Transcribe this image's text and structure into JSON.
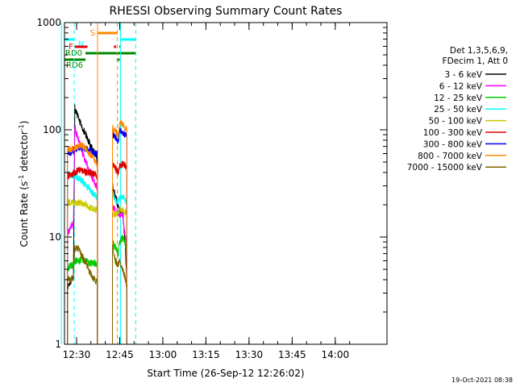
{
  "chart_data": {
    "type": "line",
    "title": "RHESSI Observing Summary Count Rates",
    "xlabel": "Start Time (26-Sep-12 12:26:02)",
    "ylabel_main": "Count Rate (s",
    "ylabel_sup1": "-1",
    "ylabel_mid": " detector",
    "ylabel_sup2": "-1",
    "ylabel_end": ")",
    "yscale": "log",
    "ylim": [
      1,
      1000
    ],
    "xlim_minutes": [
      12.43,
      14.3
    ],
    "x_ticks": [
      {
        "label": "12:30",
        "minutes": 750
      },
      {
        "label": "12:45",
        "minutes": 765
      },
      {
        "label": "13:00",
        "minutes": 780
      },
      {
        "label": "13:15",
        "minutes": 795
      },
      {
        "label": "13:30",
        "minutes": 810
      },
      {
        "label": "13:45",
        "minutes": 825
      },
      {
        "label": "14:00",
        "minutes": 840
      }
    ],
    "y_ticks": [
      {
        "label": "1",
        "value": 1
      },
      {
        "label": "10",
        "value": 10
      },
      {
        "label": "100",
        "value": 100
      },
      {
        "label": "1000",
        "value": 1000
      }
    ],
    "legend_header": [
      "Det 1,3,5,6,9,",
      "FDecim 1, Att 0"
    ],
    "timestamp": "19-Oct-2021 08:38",
    "series": [
      {
        "name": "3 - 6 keV",
        "color": "#000000",
        "segments": [
          [
            [
              746.8,
              3.2
            ],
            [
              747.3,
              3.6
            ],
            [
              747.8,
              3.8
            ],
            [
              748.4,
              4.0
            ],
            [
              748.9,
              4.2
            ],
            [
              749.4,
              160
            ],
            [
              750.0,
              145
            ],
            [
              751.0,
              120
            ],
            [
              752.0,
              105
            ],
            [
              753.0,
              92
            ],
            [
              754.0,
              80
            ],
            [
              755.0,
              70
            ],
            [
              756.0,
              62
            ],
            [
              757.2,
              55
            ]
          ],
          [
            [
              762.5,
              30
            ],
            [
              763.5,
              24
            ],
            [
              764.5,
              19
            ],
            [
              765.0,
              17
            ],
            [
              766.0,
              18
            ],
            [
              767.0,
              8
            ],
            [
              767.5,
              3.5
            ]
          ]
        ]
      },
      {
        "name": "6 - 12 keV",
        "color": "#ff00ff",
        "segments": [
          [
            [
              746.8,
              10.5
            ],
            [
              747.3,
              11.5
            ],
            [
              747.8,
              12
            ],
            [
              748.4,
              13
            ],
            [
              748.9,
              13.5
            ],
            [
              749.4,
              105
            ],
            [
              750.0,
              92
            ],
            [
              751.0,
              75
            ],
            [
              752.0,
              62
            ],
            [
              753.0,
              52
            ],
            [
              754.0,
              44
            ],
            [
              755.0,
              38
            ],
            [
              756.0,
              33
            ],
            [
              757.2,
              29
            ]
          ],
          [
            [
              762.5,
              19
            ],
            [
              763.5,
              18
            ],
            [
              764.5,
              17
            ],
            [
              765.0,
              16
            ],
            [
              766.0,
              16
            ],
            [
              767.0,
              10
            ],
            [
              767.5,
              8
            ]
          ]
        ]
      },
      {
        "name": "12 - 25 keV",
        "color": "#00cc00",
        "segments": [
          [
            [
              746.8,
              5.0
            ],
            [
              747.8,
              5.4
            ],
            [
              748.9,
              5.5
            ],
            [
              749.4,
              6.0
            ],
            [
              750.5,
              6.0
            ],
            [
              751.5,
              6.1
            ],
            [
              752.5,
              6.0
            ],
            [
              753.5,
              5.9
            ],
            [
              754.5,
              5.8
            ],
            [
              755.5,
              5.7
            ],
            [
              756.5,
              5.6
            ],
            [
              757.2,
              5.5
            ]
          ],
          [
            [
              762.5,
              9
            ],
            [
              763.5,
              8
            ],
            [
              764.5,
              7
            ],
            [
              765.0,
              9
            ],
            [
              766.0,
              10
            ],
            [
              767.0,
              9
            ],
            [
              767.5,
              7
            ]
          ]
        ]
      },
      {
        "name": "25 - 50 keV",
        "color": "#00ffff",
        "segments": [
          [
            [
              746.8,
              38
            ],
            [
              748.0,
              38
            ],
            [
              749.4,
              37
            ],
            [
              750.5,
              36
            ],
            [
              751.5,
              34
            ],
            [
              752.5,
              32
            ],
            [
              753.5,
              30
            ],
            [
              754.5,
              28
            ],
            [
              755.5,
              26
            ],
            [
              756.5,
              24
            ],
            [
              757.2,
              24
            ]
          ],
          [
            [
              762.5,
              26
            ],
            [
              763.5,
              22
            ],
            [
              764.5,
              21
            ],
            [
              765.0,
              23
            ],
            [
              766.0,
              24
            ],
            [
              767.0,
              22
            ],
            [
              767.5,
              21
            ]
          ]
        ]
      },
      {
        "name": "50 - 100 keV",
        "color": "#cccc00",
        "segments": [
          [
            [
              746.8,
              21
            ],
            [
              748.0,
              21
            ],
            [
              749.4,
              21
            ],
            [
              750.5,
              21
            ],
            [
              751.5,
              21
            ],
            [
              752.5,
              20.5
            ],
            [
              753.5,
              20
            ],
            [
              754.5,
              19
            ],
            [
              755.5,
              18.5
            ],
            [
              756.5,
              18
            ],
            [
              757.2,
              17.5
            ]
          ],
          [
            [
              762.5,
              17
            ],
            [
              763.5,
              16
            ],
            [
              764.5,
              17
            ],
            [
              765.0,
              18
            ],
            [
              766.0,
              18
            ],
            [
              767.0,
              17
            ],
            [
              767.5,
              17
            ]
          ]
        ]
      },
      {
        "name": "100 - 300 keV",
        "color": "#dd0000",
        "segments": [
          [
            [
              746.8,
              37
            ],
            [
              748.0,
              38
            ],
            [
              749.4,
              40
            ],
            [
              750.5,
              42
            ],
            [
              751.5,
              42
            ],
            [
              752.5,
              41
            ],
            [
              753.5,
              40
            ],
            [
              754.5,
              40
            ],
            [
              755.5,
              39
            ],
            [
              756.5,
              38
            ],
            [
              757.2,
              37
            ]
          ],
          [
            [
              762.5,
              48
            ],
            [
              763.5,
              44
            ],
            [
              764.5,
              40
            ],
            [
              765.0,
              46
            ],
            [
              766.0,
              48
            ],
            [
              767.0,
              46
            ],
            [
              767.5,
              46
            ]
          ]
        ]
      },
      {
        "name": "300 - 800 keV",
        "color": "#0000ff",
        "segments": [
          [
            [
              746.8,
              62
            ],
            [
              748.0,
              62
            ],
            [
              749.4,
              65
            ],
            [
              750.5,
              68
            ],
            [
              751.5,
              70
            ],
            [
              752.5,
              68
            ],
            [
              753.5,
              66
            ],
            [
              754.5,
              64
            ],
            [
              755.5,
              62
            ],
            [
              756.5,
              61
            ],
            [
              757.2,
              60
            ]
          ],
          [
            [
              762.5,
              92
            ],
            [
              763.5,
              86
            ],
            [
              764.5,
              78
            ],
            [
              765.0,
              98
            ],
            [
              766.0,
              95
            ],
            [
              767.0,
              90
            ],
            [
              767.5,
              88
            ]
          ]
        ]
      },
      {
        "name": "800 - 7000 keV",
        "color": "#ff8800",
        "segments": [
          [
            [
              746.8,
              65
            ],
            [
              748.0,
              66
            ],
            [
              749.4,
              68
            ],
            [
              750.5,
              70
            ],
            [
              751.5,
              72
            ],
            [
              752.5,
              70
            ],
            [
              753.5,
              66
            ],
            [
              754.5,
              60
            ],
            [
              755.5,
              55
            ],
            [
              756.5,
              50
            ],
            [
              757.2,
              48
            ]
          ],
          [
            [
              762.5,
              105
            ],
            [
              763.5,
              98
            ],
            [
              764.5,
              88
            ],
            [
              765.0,
              118
            ],
            [
              766.0,
              112
            ],
            [
              767.0,
              105
            ],
            [
              767.5,
              102
            ]
          ]
        ]
      },
      {
        "name": "7000 - 15000 keV",
        "color": "#806600",
        "segments": [
          [
            [
              746.8,
              4.0
            ],
            [
              747.8,
              4.0
            ],
            [
              748.9,
              4.2
            ],
            [
              749.4,
              8.0
            ],
            [
              750.5,
              7.8
            ],
            [
              751.5,
              7.0
            ],
            [
              752.5,
              6.2
            ],
            [
              753.5,
              5.5
            ],
            [
              754.5,
              4.8
            ],
            [
              755.5,
              4.2
            ],
            [
              756.5,
              3.9
            ],
            [
              757.2,
              3.8
            ]
          ],
          [
            [
              762.5,
              8
            ],
            [
              763.5,
              6
            ],
            [
              764.5,
              5.5
            ],
            [
              765.0,
              6
            ],
            [
              766.0,
              5
            ],
            [
              767.0,
              4
            ],
            [
              767.5,
              3.2
            ]
          ]
        ]
      }
    ],
    "flags": [
      {
        "label": "N",
        "color": "#00ffff",
        "tier": 1,
        "segments": [
          [
            744.7,
            749.1
          ],
          [
            765.3,
            770.6
          ]
        ]
      },
      {
        "label": "F",
        "color": "#ee0000",
        "tier": 2,
        "segments": [
          [
            749.4,
            753.8
          ],
          [
            763.0,
            763.8
          ],
          [
            764.9,
            765.4
          ]
        ]
      },
      {
        "label": "S",
        "color": "#ff8800",
        "tier": 0,
        "segments": [
          [
            757.3,
            764.2
          ]
        ]
      },
      {
        "label": "RD0",
        "color": "#008800",
        "tier": 3,
        "segments": [
          [
            744.7,
            745.8
          ],
          [
            753.1,
            764.0
          ],
          [
            764.1,
            770.6
          ]
        ]
      },
      {
        "label": "RD6",
        "color": "#008800",
        "tier": 4,
        "segments": [
          [
            745.8,
            753.1
          ],
          [
            764.0,
            765.0
          ]
        ]
      }
    ],
    "vlines": [
      {
        "minute": 744.7,
        "color": "#00ffff",
        "dashed": false
      },
      {
        "minute": 749.2,
        "color": "#00ffff",
        "dashed": true
      },
      {
        "minute": 757.3,
        "color": "#ff8800",
        "dashed": false
      },
      {
        "minute": 764.2,
        "color": "#ff8800",
        "dashed": true
      },
      {
        "minute": 765.3,
        "color": "#00ffff",
        "dashed": false
      },
      {
        "minute": 770.6,
        "color": "#00ffff",
        "dashed": true
      }
    ]
  }
}
